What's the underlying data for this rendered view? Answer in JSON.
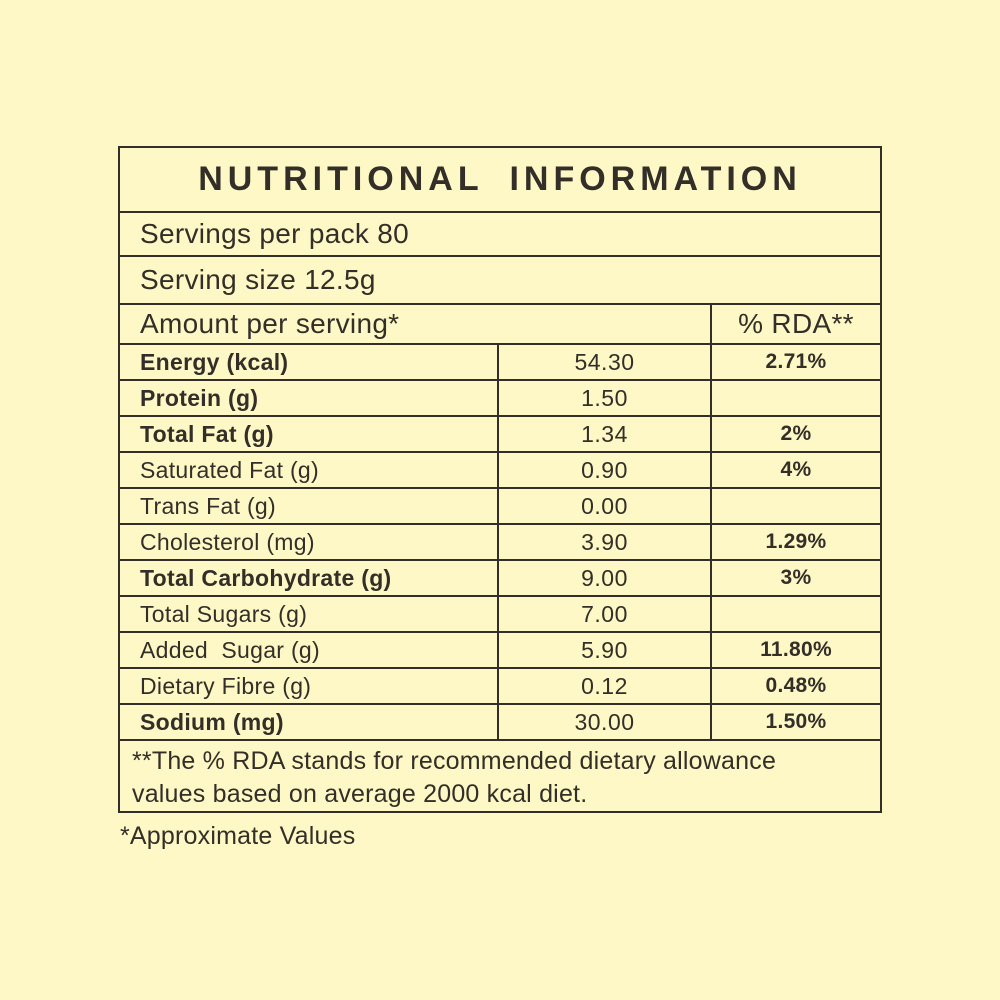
{
  "colors": {
    "background": "#FDF8C5",
    "ink": "#332E28"
  },
  "table": {
    "title": "NUTRITIONAL INFORMATION",
    "servings_per_pack": "Servings per pack 80",
    "serving_size": "Serving size 12.5g",
    "amount_header": "Amount per serving*",
    "rda_header": "% RDA**",
    "rows": [
      {
        "label": "Energy (kcal)",
        "amount": "54.30",
        "rda": "2.71%",
        "bold": true
      },
      {
        "label": "Protein (g)",
        "amount": "1.50",
        "rda": "",
        "bold": true
      },
      {
        "label": "Total Fat (g)",
        "amount": "1.34",
        "rda": "2%",
        "bold": true
      },
      {
        "label": "Saturated Fat (g)",
        "amount": "0.90",
        "rda": "4%",
        "bold": false
      },
      {
        "label": "Trans Fat (g)",
        "amount": "0.00",
        "rda": "",
        "bold": false
      },
      {
        "label": "Cholesterol (mg)",
        "amount": "3.90",
        "rda": "1.29%",
        "bold": false
      },
      {
        "label": "Total Carbohydrate (g)",
        "amount": "9.00",
        "rda": "3%",
        "bold": true
      },
      {
        "label": "Total Sugars (g)",
        "amount": "7.00",
        "rda": "",
        "bold": false
      },
      {
        "label": "Added  Sugar (g)",
        "amount": "5.90",
        "rda": "11.80%",
        "bold": false
      },
      {
        "label": "Dietary Fibre (g)",
        "amount": "0.12",
        "rda": "0.48%",
        "bold": false
      },
      {
        "label": "Sodium (mg)",
        "amount": "30.00",
        "rda": "1.50%",
        "bold": true
      }
    ],
    "footnote_line1": "**The % RDA stands for recommended dietary allowance",
    "footnote_line2": "values based on average 2000 kcal diet.",
    "approx_note": "*Approximate Values"
  }
}
